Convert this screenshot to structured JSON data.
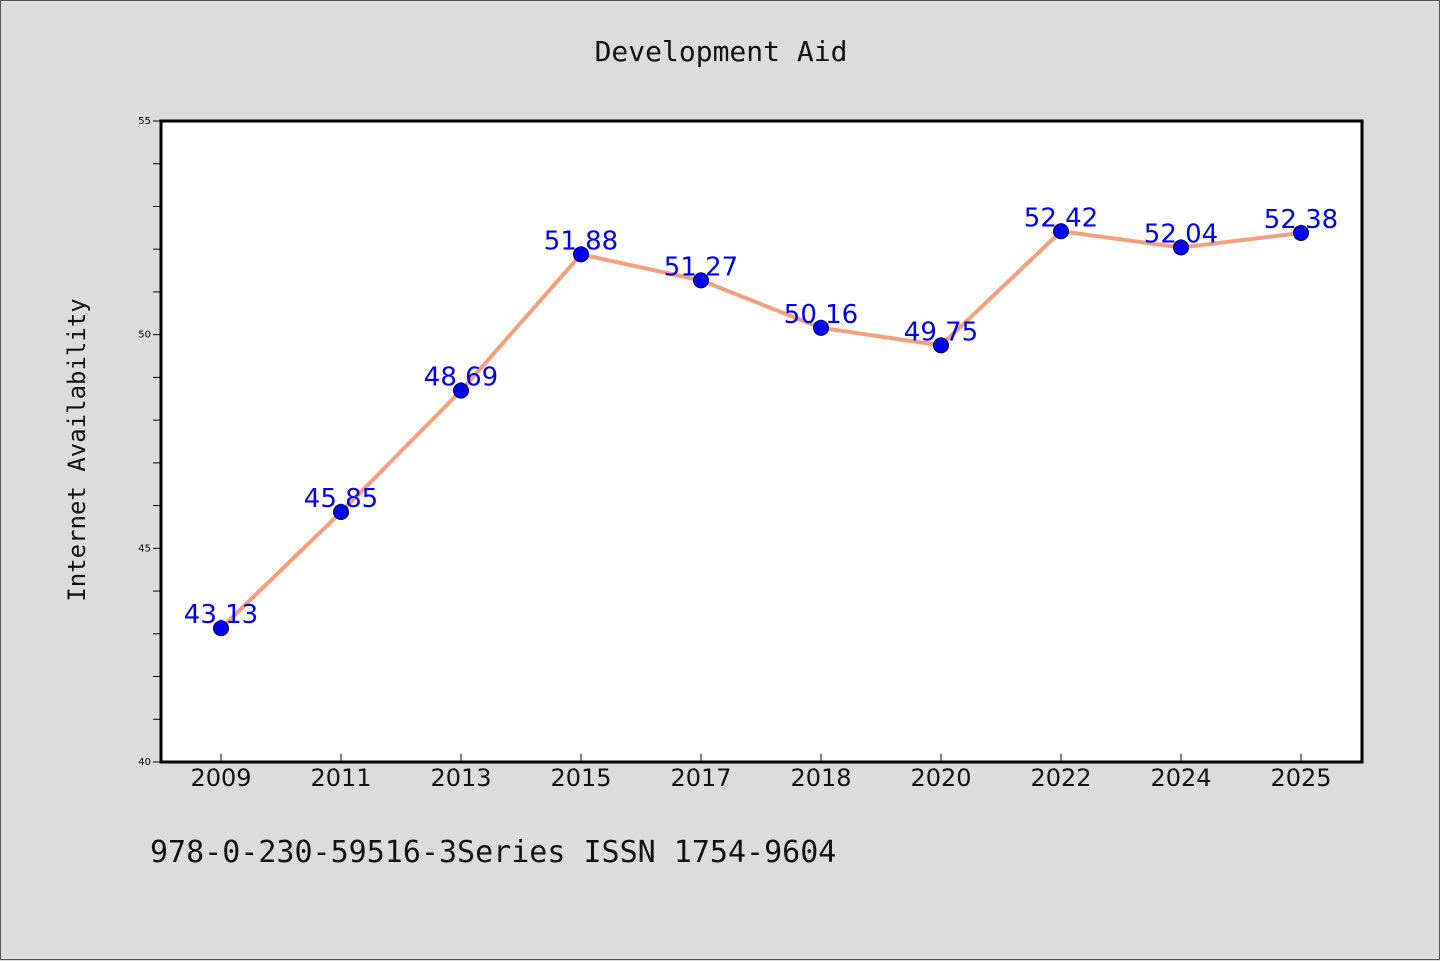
{
  "chart_data": {
    "type": "line",
    "title": "Development Aid",
    "ylabel": "Internet Availability",
    "xlabel": "",
    "categories": [
      "2009",
      "2011",
      "2013",
      "2015",
      "2017",
      "2018",
      "2020",
      "2022",
      "2024",
      "2025"
    ],
    "series": [
      {
        "values": [
          43.13,
          45.85,
          48.69,
          51.88,
          51.27,
          50.16,
          49.75,
          52.42,
          52.04,
          52.38
        ],
        "data_labels": [
          "43.13",
          "45.85",
          "48.69",
          "51.88",
          "51.27",
          "50.16",
          "49.75",
          "52.42",
          "52.04",
          "52.38"
        ],
        "line_color": "#f4a07e",
        "marker_color": "#0000ee",
        "label_color": "#0000ee"
      }
    ],
    "ylim": [
      40,
      55
    ],
    "yticks": [
      "40",
      "45",
      "50",
      "55"
    ],
    "grid": false,
    "legend": "none"
  },
  "footer": {
    "note": "978-0-230-59516-3Series ISSN 1754-9604"
  },
  "colors": {
    "background": "#dcdcdc",
    "plot_area": "#ffffff",
    "axis": "#000000"
  }
}
